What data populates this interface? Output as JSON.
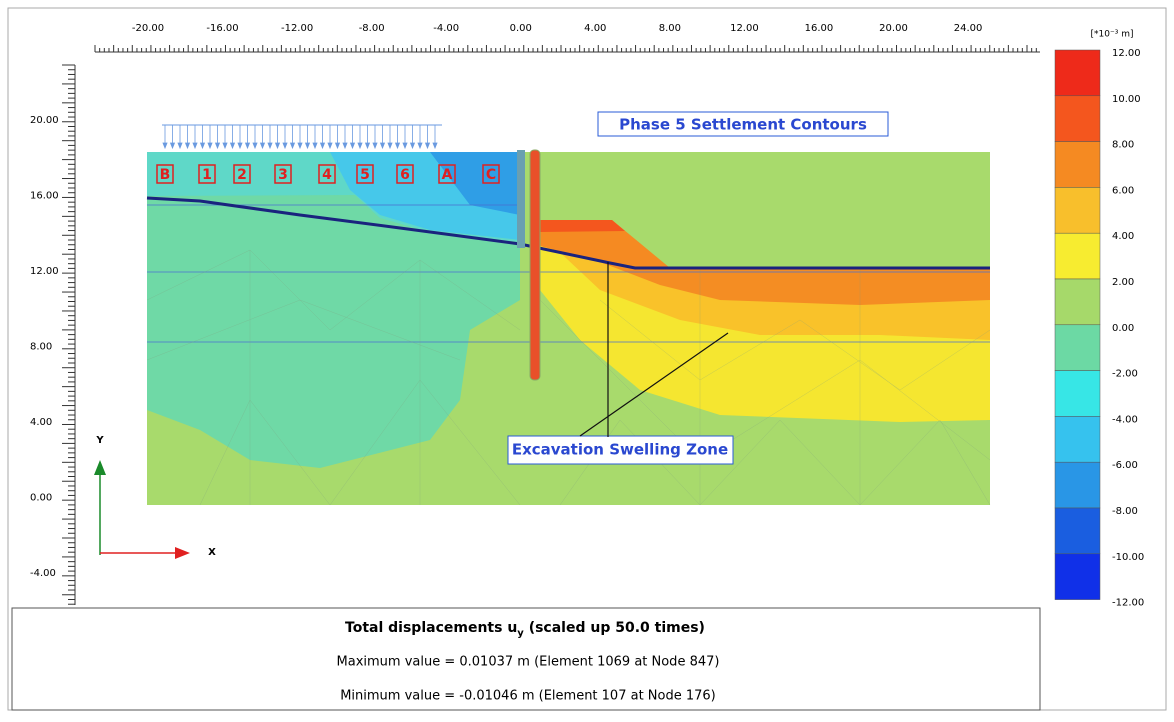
{
  "plot": {
    "x_axis_labels": [
      "-20.00",
      "-16.00",
      "-12.00",
      "-8.00",
      "-4.00",
      "0.00",
      "4.00",
      "8.00",
      "12.00",
      "16.00",
      "20.00",
      "24.00"
    ],
    "y_axis_labels": [
      "20.00",
      "16.00",
      "12.00",
      "8.00",
      "4.00",
      "0.00",
      "-4.00"
    ],
    "axis_names": {
      "y": "Y",
      "x": "X"
    },
    "point_labels": [
      "B",
      "1",
      "2",
      "3",
      "4",
      "5",
      "6",
      "A",
      "C"
    ],
    "annotations": {
      "title": "Phase 5 Settlement Contours",
      "zone": "Excavation Swelling Zone"
    }
  },
  "legend": {
    "unit": "[*10⁻³ m]",
    "levels": [
      "12.00",
      "10.00",
      "8.00",
      "6.00",
      "4.00",
      "2.00",
      "0.00",
      "-2.00",
      "-4.00",
      "-6.00",
      "-8.00",
      "-10.00",
      "-12.00"
    ],
    "colors": [
      "#ee2a1a",
      "#f4561e",
      "#f58a22",
      "#f8bf2c",
      "#f7ec30",
      "#a6d96a",
      "#6cd9a4",
      "#37e6e6",
      "#36c2ee",
      "#2996e6",
      "#1a5ee0",
      "#1030e8"
    ]
  },
  "footer": {
    "title": "Total displacements u",
    "subscript": "y",
    "title_suffix": " (scaled up 50.0 times)",
    "max": "Maximum value = 0.01037 m (Element 1069 at Node 847)",
    "min": "Minimum value = -0.01046 m (Element 107 at Node 176)"
  }
}
